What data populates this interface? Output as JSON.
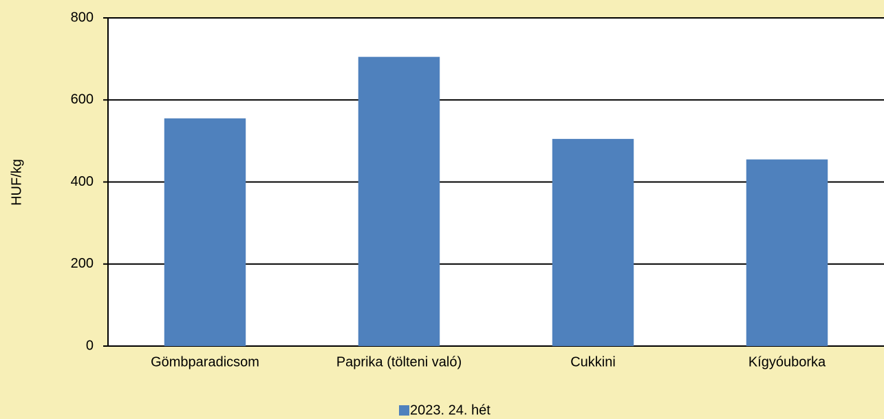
{
  "chart_data": {
    "type": "bar",
    "y_label": "HUF/kg",
    "categories": [
      "Gömbparadicsom",
      "Paprika (tölteni való)",
      "Cukkini",
      "Kígyóuborka"
    ],
    "series": [
      {
        "name": "2023. 24. hét",
        "color": "#4f81bd",
        "values": [
          555,
          705,
          505,
          455
        ]
      }
    ],
    "ylim": [
      0,
      800
    ],
    "yticks": [
      0,
      200,
      400,
      600,
      800
    ],
    "grid": true,
    "legend": "bottom"
  }
}
